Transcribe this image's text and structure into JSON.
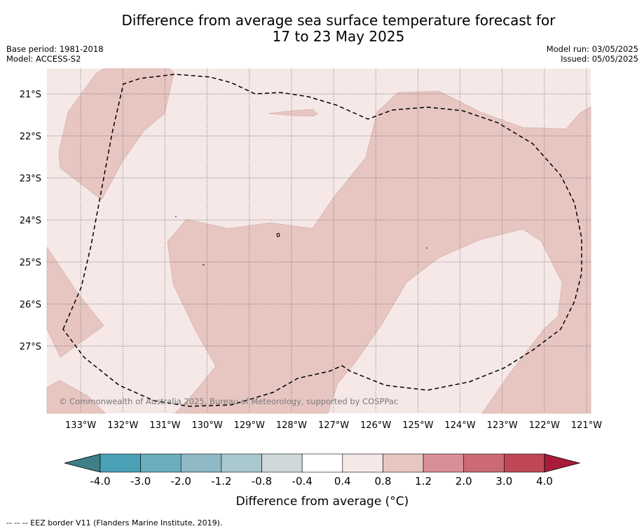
{
  "header": {
    "title_line1": "Difference from average sea surface temperature forecast for",
    "title_line2": "17 to 23 May 2025",
    "base_period": "Base period: 1981-2018",
    "model": "Model: ACCESS-S2",
    "model_run": "Model run: 03/05/2025",
    "issued": "Issued: 05/05/2025"
  },
  "map": {
    "credit": "© Commonwealth of Australia 2025, Bureau of Meteorology, supported by COSPPac",
    "boundary_style": "dashed",
    "colors": {
      "land_outline": "#000000",
      "grid": "#555555",
      "band_0_4_to_0_8": "#f5e8e7",
      "band_0_8_to_1_2": "#e7c6c2"
    }
  },
  "chart_data": {
    "type": "heatmap",
    "title": "Difference from average sea surface temperature forecast for 17 to 23 May 2025",
    "x_ticks": [
      "133°W",
      "132°W",
      "131°W",
      "130°W",
      "129°W",
      "128°W",
      "127°W",
      "126°W",
      "125°W",
      "124°W",
      "123°W",
      "122°W",
      "121°W"
    ],
    "y_ticks": [
      "21°S",
      "22°S",
      "23°S",
      "24°S",
      "25°S",
      "26°S",
      "27°S"
    ],
    "xlim": [
      -133.8,
      -120.9
    ],
    "ylim": [
      -28.6,
      -20.4
    ],
    "grid": true,
    "field_range_degC": [
      0.4,
      1.2
    ],
    "colorbar": {
      "label": "Difference from average ($^\\circ$C)",
      "label_display": "Difference from average (°C)",
      "tick_labels": [
        "-4.0",
        "-3.0",
        "-2.0",
        "-1.2",
        "-0.8",
        "-0.4",
        "0.4",
        "0.8",
        "1.2",
        "2.0",
        "3.0",
        "4.0"
      ],
      "colors": [
        "#3e7f88",
        "#4aa0b4",
        "#6badbc",
        "#8fb9c4",
        "#a9c8cd",
        "#cfd9dc",
        "#ffffff",
        "#f5e8e7",
        "#e7c6c2",
        "#d98f96",
        "#cb6a74",
        "#bf4757",
        "#a81c39"
      ]
    }
  },
  "footer": {
    "note": "--  --  -- EEZ border V11 (Flanders Marine Institute, 2019)."
  }
}
